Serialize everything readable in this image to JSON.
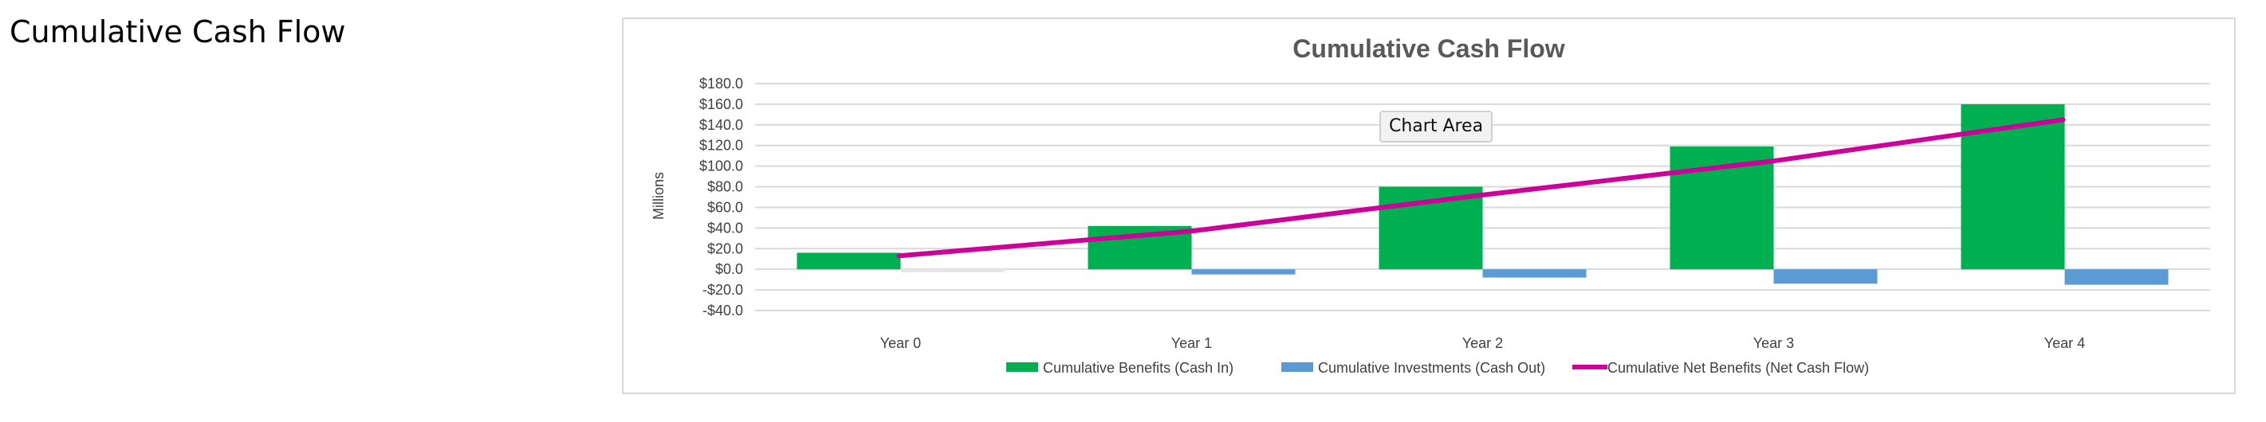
{
  "page": {
    "heading": "Cumulative Cash Flow"
  },
  "tooltip": {
    "label": "Chart Area"
  },
  "colors": {
    "benefits": "#00b050",
    "investments": "#5b9bd5",
    "net": "#cc0099",
    "grid": "#d9d9d9"
  },
  "chart_data": {
    "type": "bar",
    "title": "Cumulative Cash Flow",
    "ylabel": "Millions",
    "xlabel": "",
    "categories": [
      "Year 0",
      "Year 1",
      "Year 2",
      "Year 3",
      "Year 4"
    ],
    "ylim": [
      -40,
      180
    ],
    "yticks": [
      -40,
      -20,
      0,
      20,
      40,
      60,
      80,
      100,
      120,
      140,
      160,
      180
    ],
    "ytick_labels": [
      "-$40.0",
      "-$20.0",
      "$0.0",
      "$20.0",
      "$40.0",
      "$60.0",
      "$80.0",
      "$100.0",
      "$120.0",
      "$140.0",
      "$160.0",
      "$180.0"
    ],
    "grid": true,
    "legend_position": "bottom",
    "series": [
      {
        "name": "Cumulative Benefits (Cash In)",
        "type": "bar",
        "values": [
          16,
          42,
          80,
          119,
          160
        ]
      },
      {
        "name": "Cumulative Investments (Cash Out)",
        "type": "bar",
        "values": [
          -3,
          -5,
          -8,
          -14,
          -15
        ]
      },
      {
        "name": "Cumulative Net Benefits (Net Cash Flow)",
        "type": "line",
        "values": [
          13,
          37,
          72,
          105,
          145
        ]
      }
    ]
  }
}
